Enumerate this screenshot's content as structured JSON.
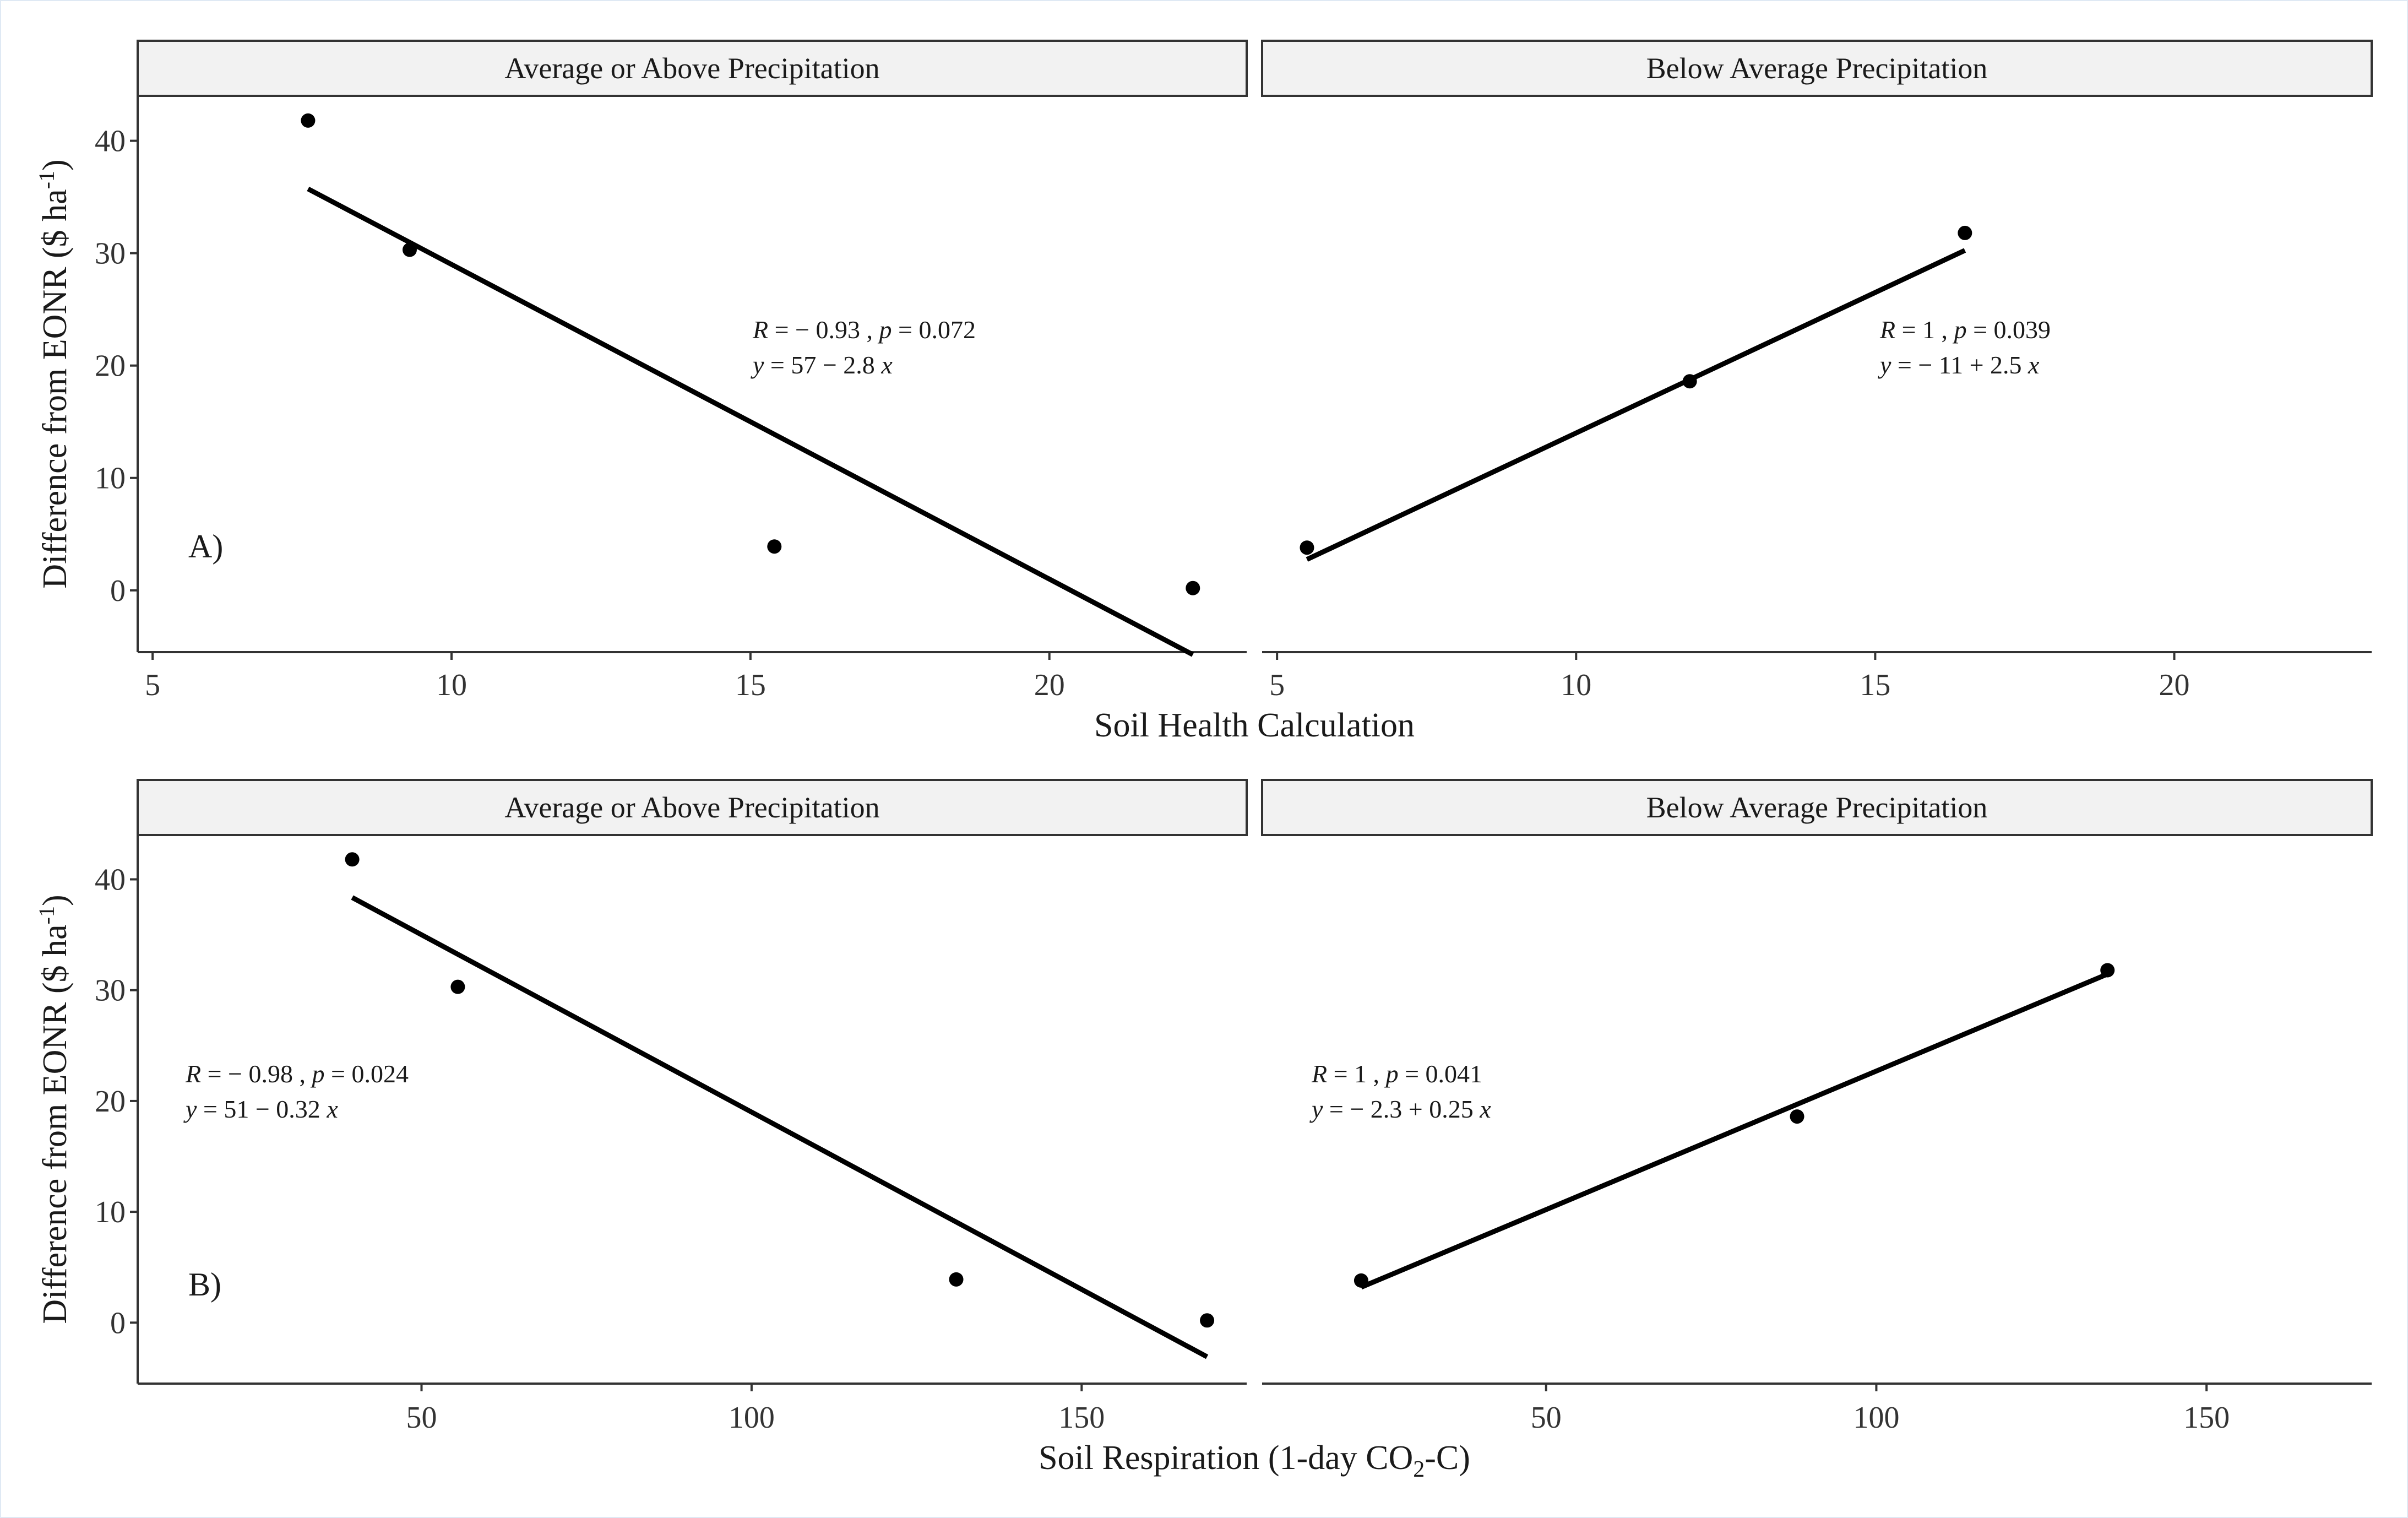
{
  "chart_data": [
    {
      "type": "scatter",
      "panel_label": "A)",
      "xlabel": "Soil Health Calculation",
      "ylabel": "Difference from EONR ($ ha",
      "ylabel_sup": "-1",
      "ylabel_close": ")",
      "ylim": [
        -5.5,
        44
      ],
      "yticks": [
        0,
        10,
        20,
        30,
        40
      ],
      "xlim": [
        4.75,
        23.3
      ],
      "xticks": [
        5,
        10,
        15,
        20
      ],
      "facets": [
        {
          "strip": "Average or Above Precipitation",
          "points": [
            [
              7.6,
              41.8
            ],
            [
              9.3,
              30.3
            ],
            [
              15.4,
              3.9
            ],
            [
              22.4,
              0.2
            ]
          ],
          "fit": {
            "intercept": 57,
            "slope": -2.8,
            "x_range": [
              7.6,
              22.4
            ]
          },
          "annotation": {
            "r_label": "R",
            "r_text": " = − 0.93 , ",
            "p_label": "p",
            "p_text": " = 0.072",
            "eq_y": "y",
            "eq_text": " = 57 − 2.8 ",
            "eq_x": "x"
          }
        },
        {
          "strip": "Below Average Precipitation",
          "points": [
            [
              5.5,
              3.8
            ],
            [
              11.9,
              18.6
            ],
            [
              16.5,
              31.8
            ]
          ],
          "fit": {
            "intercept": -11,
            "slope": 2.5,
            "x_range": [
              5.5,
              16.5
            ]
          },
          "annotation": {
            "r_label": "R",
            "r_text": " = 1 , ",
            "p_label": "p",
            "p_text": " = 0.039",
            "eq_y": "y",
            "eq_text": " = − 11 + 2.5 ",
            "eq_x": "x"
          }
        }
      ]
    },
    {
      "type": "scatter",
      "panel_label": "B)",
      "xlabel": "Soil Respiration (1-day CO",
      "xlabel_sub": "2",
      "xlabel_close": "-C)",
      "ylabel": "Difference from EONR ($ ha",
      "ylabel_sup": "-1",
      "ylabel_close": ")",
      "ylim": [
        -5.5,
        44
      ],
      "yticks": [
        0,
        10,
        20,
        30,
        40
      ],
      "xlim": [
        7,
        175
      ],
      "xticks": [
        50,
        100,
        150
      ],
      "facets": [
        {
          "strip": "Average or Above Precipitation",
          "points": [
            [
              39.5,
              41.8
            ],
            [
              55.5,
              30.3
            ],
            [
              131,
              3.9
            ],
            [
              169,
              0.2
            ]
          ],
          "fit": {
            "intercept": 51,
            "slope": -0.32,
            "x_range": [
              39.5,
              169
            ]
          },
          "annotation": {
            "r_label": "R",
            "r_text": " = − 0.98 , ",
            "p_label": "p",
            "p_text": " = 0.024",
            "eq_y": "y",
            "eq_text": " = 51 − 0.32 ",
            "eq_x": "x"
          }
        },
        {
          "strip": "Below Average Precipitation",
          "points": [
            [
              22,
              3.8
            ],
            [
              88,
              18.6
            ],
            [
              135,
              31.8
            ]
          ],
          "fit": {
            "intercept": -2.3,
            "slope": 0.25,
            "x_range": [
              22,
              135
            ]
          },
          "annotation": {
            "r_label": "R",
            "r_text": " = 1 , ",
            "p_label": "p",
            "p_text": " = 0.041",
            "eq_y": "y",
            "eq_text": " = − 2.3 + 0.25 ",
            "eq_x": "x"
          }
        }
      ]
    }
  ]
}
